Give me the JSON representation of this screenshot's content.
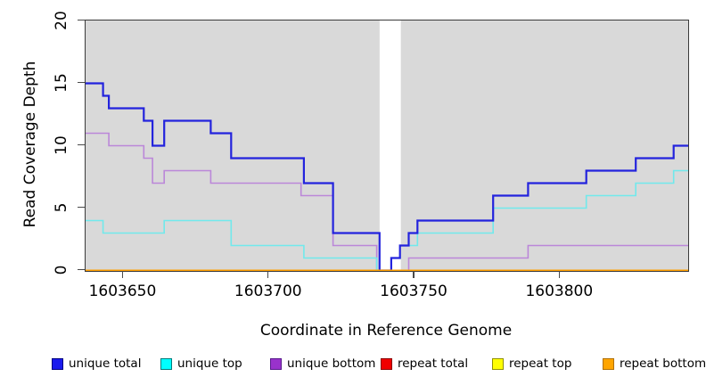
{
  "chart_data": {
    "type": "line",
    "subtype": "step",
    "title": "",
    "xlabel": "Coordinate in Reference Genome",
    "ylabel": "Read Coverage Depth",
    "xlim": [
      1603637,
      1603844
    ],
    "ylim": [
      0,
      20
    ],
    "x_ticks": [
      "1603650",
      "1603700",
      "1603750",
      "1603800"
    ],
    "x_tick_values": [
      1603650,
      1603700,
      1603750,
      1603800
    ],
    "y_ticks": [
      "0",
      "5",
      "10",
      "15",
      "20"
    ],
    "y_tick_values": [
      0,
      5,
      10,
      15,
      20
    ],
    "grid": "off",
    "plot_bg": "#d9d9d9",
    "uncovered_region": {
      "start": 1603738,
      "end": 1603745.3,
      "color": "#ffffff"
    },
    "legend_position": "bottom",
    "draw_order": [
      "unique bottom",
      "unique top",
      "unique total",
      "repeat total",
      "repeat top",
      "repeat bottom"
    ],
    "series": [
      {
        "name": "unique total",
        "color": "#2323dd",
        "width": 2.2,
        "steps": [
          [
            1603637,
            15
          ],
          [
            1603643,
            14
          ],
          [
            1603645,
            13
          ],
          [
            1603657,
            12
          ],
          [
            1603660,
            10
          ],
          [
            1603664,
            12
          ],
          [
            1603680,
            11
          ],
          [
            1603687,
            9
          ],
          [
            1603712,
            7
          ],
          [
            1603722,
            3
          ],
          [
            1603738,
            0
          ],
          [
            1603742,
            1
          ],
          [
            1603745,
            2
          ],
          [
            1603748,
            3
          ],
          [
            1603751,
            4
          ],
          [
            1603777,
            6
          ],
          [
            1603789,
            7
          ],
          [
            1603809,
            8
          ],
          [
            1603826,
            9
          ],
          [
            1603839,
            10
          ]
        ]
      },
      {
        "name": "unique top",
        "color": "#71e9ec",
        "width": 1.6,
        "steps": [
          [
            1603637,
            4
          ],
          [
            1603643,
            3
          ],
          [
            1603664,
            4
          ],
          [
            1603687,
            2
          ],
          [
            1603712,
            1
          ],
          [
            1603737,
            0
          ],
          [
            1603742,
            1
          ],
          [
            1603745,
            2
          ],
          [
            1603751,
            3
          ],
          [
            1603777,
            5
          ],
          [
            1603809,
            6
          ],
          [
            1603826,
            7
          ],
          [
            1603839,
            8
          ]
        ]
      },
      {
        "name": "unique bottom",
        "color": "#bb87d9",
        "width": 1.6,
        "steps": [
          [
            1603637,
            11
          ],
          [
            1603645,
            10
          ],
          [
            1603657,
            9
          ],
          [
            1603660,
            7
          ],
          [
            1603664,
            8
          ],
          [
            1603680,
            7
          ],
          [
            1603711,
            6
          ],
          [
            1603722,
            2
          ],
          [
            1603737,
            0
          ],
          [
            1603748,
            1
          ],
          [
            1603789,
            2
          ]
        ]
      },
      {
        "name": "repeat total",
        "color": "#cc2222",
        "width": 1.6,
        "steps": [
          [
            1603637,
            0
          ]
        ]
      },
      {
        "name": "repeat top",
        "color": "#efef45",
        "width": 1.6,
        "steps": [
          [
            1603637,
            0
          ]
        ]
      },
      {
        "name": "repeat bottom",
        "color": "#ff9f00",
        "width": 2,
        "steps": [
          [
            1603637,
            0
          ]
        ]
      }
    ]
  },
  "legend": {
    "items": [
      {
        "label": "unique total",
        "fill": "#1a1aee",
        "border": "#000080"
      },
      {
        "label": "unique top",
        "fill": "#00ffff",
        "border": "#007b7b"
      },
      {
        "label": "unique bottom",
        "fill": "#9932cc",
        "border": "#571a8b"
      },
      {
        "label": "repeat total",
        "fill": "#f00000",
        "border": "#8b0000"
      },
      {
        "label": "repeat top",
        "fill": "#ffff00",
        "border": "#909000"
      },
      {
        "label": "repeat bottom",
        "fill": "#ffa500",
        "border": "#b06f00"
      }
    ]
  }
}
